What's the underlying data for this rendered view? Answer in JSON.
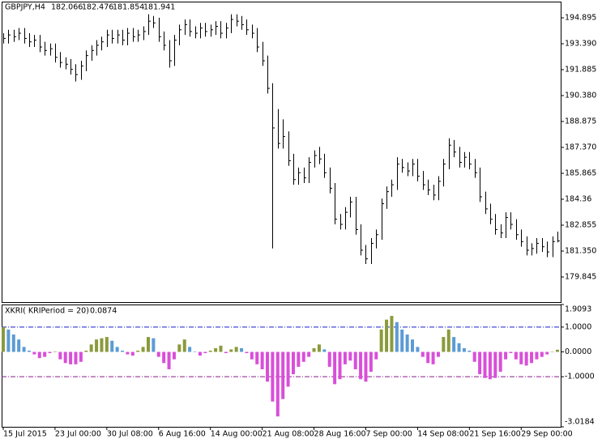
{
  "chart_data": [
    {
      "type": "ohlc",
      "title": "GBPJPY,H4",
      "ohlc": [
        182.066,
        182.476,
        181.854,
        181.941
      ],
      "color": "#000000",
      "ylim": [
        178.387,
        195.836
      ],
      "yticks": [
        194.895,
        {
          "value": 193.39,
          "label": "193.390"
        },
        191.885,
        {
          "value": 190.38,
          "label": "190.380"
        },
        188.875,
        {
          "value": 187.37,
          "label": "187.370"
        },
        185.865,
        184.36,
        182.855,
        {
          "value": 181.35,
          "label": "181.350"
        },
        179.845
      ],
      "high": [
        194.0,
        194.2,
        194.2,
        194.3,
        194.3,
        194.0,
        193.9,
        193.9,
        193.5,
        193.4,
        193.4,
        192.9,
        192.6,
        192.5,
        192.2,
        192.4,
        193.0,
        193.3,
        193.6,
        193.8,
        194.2,
        194.2,
        194.2,
        194.2,
        194.3,
        194.3,
        194.2,
        194.4,
        195.1,
        195.0,
        194.9,
        194.1,
        193.6,
        193.9,
        194.5,
        194.8,
        194.8,
        194.4,
        194.6,
        194.6,
        194.5,
        194.7,
        194.7,
        194.6,
        195.1,
        195.1,
        195.0,
        194.8,
        194.5,
        194.3,
        193.5,
        192.7,
        191.1,
        189.6,
        189.0,
        188.3,
        187.0,
        186.2,
        186.2,
        186.8,
        187.2,
        187.4,
        187.0,
        186.2,
        185.3,
        183.5,
        183.9,
        184.5,
        184.5,
        182.9,
        181.7,
        182.1,
        182.6,
        184.4,
        185.1,
        185.5,
        186.8,
        186.7,
        186.5,
        186.7,
        186.7,
        186.0,
        185.5,
        185.2,
        185.7,
        186.7,
        187.9,
        187.8,
        187.4,
        187.1,
        187.1,
        186.7,
        186.2,
        184.8,
        184.1,
        183.5,
        182.9,
        183.6,
        183.6,
        183.2,
        182.6,
        182.2,
        181.8,
        182.1,
        182.1,
        181.9,
        182.2,
        182.476
      ],
      "low": [
        193.4,
        193.4,
        193.5,
        193.6,
        193.4,
        193.2,
        193.2,
        192.9,
        192.7,
        192.7,
        192.3,
        192.0,
        191.9,
        191.6,
        191.2,
        191.3,
        191.8,
        192.4,
        192.7,
        193.0,
        193.2,
        193.4,
        193.4,
        193.3,
        193.3,
        193.5,
        193.5,
        193.6,
        193.9,
        194.3,
        193.5,
        193.0,
        192.0,
        192.1,
        193.3,
        193.9,
        193.8,
        193.7,
        193.7,
        193.8,
        193.8,
        193.9,
        193.7,
        193.7,
        194.0,
        194.4,
        194.2,
        193.9,
        193.7,
        192.9,
        192.1,
        190.5,
        181.5,
        187.3,
        187.3,
        186.3,
        185.2,
        185.2,
        185.3,
        185.3,
        186.2,
        186.4,
        185.6,
        184.7,
        182.9,
        182.6,
        182.6,
        183.3,
        182.3,
        181.1,
        180.6,
        180.6,
        181.5,
        182.0,
        183.8,
        184.5,
        184.9,
        185.9,
        185.7,
        185.7,
        185.4,
        184.9,
        184.6,
        184.3,
        184.3,
        185.1,
        186.1,
        186.8,
        186.2,
        186.2,
        186.1,
        185.6,
        184.2,
        183.5,
        182.9,
        182.3,
        182.1,
        182.1,
        182.6,
        182.0,
        181.6,
        181.1,
        181.1,
        181.2,
        181.3,
        181.0,
        181.0,
        181.854
      ],
      "close": [
        193.7,
        193.9,
        193.8,
        194.0,
        193.7,
        193.5,
        193.6,
        193.2,
        193.0,
        193.1,
        192.6,
        192.3,
        192.2,
        191.9,
        191.6,
        192.1,
        192.7,
        193.0,
        193.3,
        193.5,
        193.9,
        193.7,
        193.9,
        193.6,
        194.0,
        193.8,
        193.9,
        194.1,
        194.7,
        194.6,
        193.8,
        193.3,
        192.4,
        193.6,
        194.2,
        194.5,
        194.1,
        194.0,
        194.3,
        194.1,
        194.2,
        194.4,
        194.0,
        194.3,
        194.8,
        194.7,
        194.5,
        194.2,
        194.0,
        193.2,
        192.4,
        190.8,
        188.5,
        187.6,
        188.0,
        186.6,
        185.5,
        185.9,
        185.6,
        186.5,
        186.9,
        186.7,
        185.9,
        185.0,
        183.2,
        182.9,
        183.6,
        184.2,
        182.6,
        181.4,
        180.9,
        181.8,
        182.3,
        184.1,
        184.8,
        185.2,
        186.4,
        186.2,
        186.0,
        186.4,
        185.7,
        185.2,
        184.9,
        184.6,
        185.4,
        186.4,
        187.5,
        187.1,
        186.5,
        186.8,
        186.4,
        185.9,
        184.5,
        183.8,
        183.2,
        182.6,
        182.4,
        183.3,
        182.9,
        182.3,
        181.9,
        181.4,
        181.5,
        181.8,
        181.6,
        181.3,
        181.9,
        181.941
      ]
    },
    {
      "type": "bar",
      "title": "XKRI( KRIPeriod = 20)",
      "current": 0.0874,
      "colors": {
        "up": "#8b9a3c",
        "down": "#5b9bd5",
        "negative": "#d94fd9"
      },
      "ylim": [
        -3.0184,
        1.9093
      ],
      "yticks": [
        1.9093,
        {
          "value": 1,
          "label": "1.0000"
        },
        {
          "value": 0,
          "label": "0.0000"
        },
        {
          "value": -1,
          "label": "-1.0000"
        },
        -3.0184
      ],
      "levels": [
        {
          "value": 1,
          "color": "#1a1acc"
        },
        {
          "value": -1,
          "color": "#8b1a8b"
        }
      ],
      "categories": [
        "15 Jul 2015",
        null,
        null,
        null,
        null,
        null,
        null,
        null,
        null,
        null,
        "23 Jul 00:00",
        null,
        null,
        null,
        null,
        null,
        null,
        null,
        null,
        null,
        "30 Jul 08:00",
        null,
        null,
        null,
        null,
        null,
        null,
        null,
        null,
        null,
        "6 Aug 16:00",
        null,
        null,
        null,
        null,
        null,
        null,
        null,
        null,
        null,
        "14 Aug 00:00",
        null,
        null,
        null,
        null,
        null,
        null,
        null,
        null,
        null,
        "21 Aug 08:00",
        null,
        null,
        null,
        null,
        null,
        null,
        null,
        null,
        null,
        "28 Aug 16:00",
        null,
        null,
        null,
        null,
        null,
        null,
        null,
        null,
        null,
        "7 Sep 00:00",
        null,
        null,
        null,
        null,
        null,
        null,
        null,
        null,
        null,
        "14 Sep 08:00",
        null,
        null,
        null,
        null,
        null,
        null,
        null,
        null,
        null,
        "21 Sep 16:00",
        null,
        null,
        null,
        null,
        null,
        null,
        null,
        null,
        null,
        "29 Sep 00:00",
        null,
        null,
        null,
        null,
        null,
        null,
        null
      ],
      "values": [
        1.0,
        0.9,
        0.7,
        0.5,
        0.2,
        0.05,
        -0.1,
        -0.25,
        -0.2,
        -0.05,
        0.02,
        -0.3,
        -0.45,
        -0.5,
        -0.5,
        -0.4,
        0.05,
        0.3,
        0.5,
        0.55,
        0.6,
        0.45,
        0.2,
        0.05,
        -0.1,
        -0.15,
        0.05,
        0.2,
        0.6,
        0.55,
        -0.2,
        -0.45,
        -0.7,
        -0.3,
        0.3,
        0.5,
        0.2,
        0.02,
        -0.15,
        -0.05,
        0.05,
        0.15,
        0.25,
        -0.05,
        0.1,
        0.2,
        0.15,
        -0.05,
        -0.3,
        -0.5,
        -0.7,
        -1.2,
        -2.0,
        -2.6,
        -1.9,
        -1.4,
        -0.9,
        -0.6,
        -0.4,
        -0.2,
        0.15,
        0.3,
        0.1,
        -0.6,
        -1.3,
        -1.1,
        -0.5,
        -0.35,
        -0.7,
        -1.1,
        -1.2,
        -0.8,
        -0.3,
        0.9,
        1.3,
        1.45,
        1.2,
        0.9,
        0.7,
        0.5,
        0.2,
        -0.2,
        -0.45,
        -0.5,
        -0.2,
        0.6,
        0.9,
        0.6,
        0.35,
        0.15,
        0.05,
        -0.4,
        -0.9,
        -1.05,
        -1.1,
        -1.05,
        -0.8,
        -0.3,
        -0.05,
        -0.3,
        -0.5,
        -0.55,
        -0.45,
        -0.3,
        -0.2,
        -0.1,
        0.0,
        0.0874
      ]
    }
  ]
}
